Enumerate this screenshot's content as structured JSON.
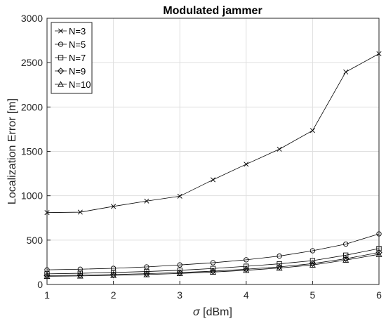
{
  "chart_data": {
    "type": "line",
    "title": "Modulated jammer",
    "xlabel_symbol": "σ",
    "xlabel_unit": " [dBm]",
    "ylabel": "Localization Error [m]",
    "xlim": [
      1,
      6
    ],
    "ylim": [
      0,
      3000
    ],
    "grid": true,
    "legend_position": "top-left",
    "x_ticks": [
      1,
      2,
      3,
      4,
      5,
      6
    ],
    "y_ticks": [
      0,
      500,
      1000,
      1500,
      2000,
      2500,
      3000
    ],
    "x": [
      1,
      1.5,
      2,
      2.5,
      3,
      3.5,
      4,
      4.5,
      5,
      5.5,
      6
    ],
    "series": [
      {
        "name": "N=3",
        "marker": "x",
        "values": [
          810,
          815,
          880,
          940,
          995,
          1180,
          1355,
          1525,
          1735,
          2395,
          2600
        ]
      },
      {
        "name": "N=5",
        "marker": "circle",
        "values": [
          165,
          172,
          182,
          198,
          220,
          245,
          278,
          320,
          380,
          455,
          570
        ]
      },
      {
        "name": "N=7",
        "marker": "square",
        "values": [
          120,
          126,
          135,
          146,
          160,
          180,
          205,
          233,
          268,
          330,
          405
        ]
      },
      {
        "name": "N=9",
        "marker": "diamond",
        "values": [
          100,
          105,
          112,
          122,
          134,
          150,
          172,
          198,
          235,
          290,
          360
        ]
      },
      {
        "name": "N=10",
        "marker": "triangle",
        "values": [
          92,
          96,
          103,
          112,
          124,
          140,
          160,
          185,
          220,
          275,
          340
        ]
      }
    ],
    "colors": {
      "line": "#000000",
      "grid": "#dfdfdf",
      "axes": "#262626"
    }
  }
}
